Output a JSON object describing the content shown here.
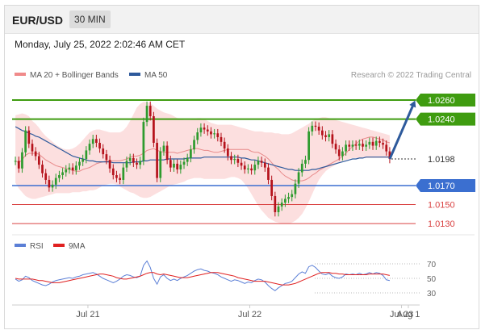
{
  "header": {
    "symbol": "EUR/USD",
    "timeframe": "30 MIN"
  },
  "datetime": "Monday, July 25, 2022 2:02:46 AM CET",
  "legend": {
    "ma20": {
      "label": "MA 20 + Bollinger Bands",
      "color": "#f08a8a"
    },
    "ma50": {
      "label": "MA 50",
      "color": "#2e5a9c"
    },
    "rsi": {
      "label": "RSI",
      "color": "#5b7fd6"
    },
    "rsi_ma": {
      "label": "9MA",
      "color": "#e02020"
    }
  },
  "source": "Research © 2022 Trading Central",
  "colors": {
    "bull": "#2e9b2e",
    "bear": "#b5121b",
    "band": "#fbd4d4",
    "resistance": "#3f9c10",
    "support_main": "#3b6fd0",
    "support": "#d94040",
    "target": "#2e5a9c"
  },
  "chart_data": [
    {
      "type": "candlestick",
      "ylim": [
        1.0125,
        1.0277
      ],
      "levels": [
        {
          "value": 1.026,
          "label": "1.0260",
          "kind": "resistance"
        },
        {
          "value": 1.024,
          "label": "1.0240",
          "kind": "resistance"
        },
        {
          "value": 1.0198,
          "label": "1.0198",
          "kind": "current"
        },
        {
          "value": 1.017,
          "label": "1.0170",
          "kind": "pivot"
        },
        {
          "value": 1.015,
          "label": "1.0150",
          "kind": "support"
        },
        {
          "value": 1.013,
          "label": "1.0130",
          "kind": "support"
        }
      ],
      "x_labels": [
        "Jul 21",
        "Jul 22",
        "Jul 23",
        "Aug 1"
      ],
      "closes": [
        1.0196,
        1.0188,
        1.0205,
        1.0228,
        1.0214,
        1.0206,
        1.0201,
        1.0192,
        1.0183,
        1.0176,
        1.0168,
        1.0171,
        1.0178,
        1.0181,
        1.0184,
        1.0187,
        1.0189,
        1.0186,
        1.0191,
        1.0195,
        1.0198,
        1.0207,
        1.0214,
        1.0219,
        1.0215,
        1.0209,
        1.0203,
        1.0197,
        1.0188,
        1.0181,
        1.0178,
        1.0176,
        1.0189,
        1.0196,
        1.0199,
        1.0194,
        1.0192,
        1.0196,
        1.0237,
        1.0254,
        1.0243,
        1.0215,
        1.0178,
        1.0206,
        1.0212,
        1.0197,
        1.0189,
        1.0193,
        1.0187,
        1.0192,
        1.0195,
        1.0199,
        1.0208,
        1.0218,
        1.0226,
        1.0231,
        1.0229,
        1.0227,
        1.0224,
        1.0225,
        1.0221,
        1.0216,
        1.0209,
        1.0201,
        1.0197,
        1.0198,
        1.0194,
        1.0191,
        1.0187,
        1.0188,
        1.0186,
        1.0192,
        1.0196,
        1.0194,
        1.0189,
        1.0176,
        1.0159,
        1.0142,
        1.0148,
        1.0152,
        1.0156,
        1.0158,
        1.0161,
        1.0172,
        1.0184,
        1.0193,
        1.0197,
        1.0227,
        1.0233,
        1.0232,
        1.0228,
        1.0223,
        1.0221,
        1.0224,
        1.0214,
        1.0208,
        1.0201,
        1.0206,
        1.0213,
        1.0211,
        1.0213,
        1.0212,
        1.0214,
        1.0211,
        1.0213,
        1.0216,
        1.0212,
        1.0217,
        1.0215,
        1.0213,
        1.0206,
        1.0198
      ],
      "ma20": [
        1.0196,
        1.0194,
        1.0197,
        1.0202,
        1.0204,
        1.0204,
        1.0204,
        1.0203,
        1.02,
        1.0197,
        1.0195,
        1.0193,
        1.0191,
        1.019,
        1.0189,
        1.0188,
        1.0187,
        1.0186,
        1.0185,
        1.0185,
        1.0187,
        1.0188,
        1.0189,
        1.0191,
        1.0193,
        1.0194,
        1.0195,
        1.0196,
        1.0196,
        1.0196,
        1.0196,
        1.0196,
        1.0197,
        1.0198,
        1.02,
        1.0201,
        1.0201,
        1.0202,
        1.0204,
        1.0207,
        1.0208,
        1.0209,
        1.0207,
        1.0206,
        1.0205,
        1.0205,
        1.0205,
        1.0205,
        1.0204,
        1.0205,
        1.0206,
        1.0207,
        1.0208,
        1.0209,
        1.0209,
        1.0208,
        1.0207,
        1.0207,
        1.0206,
        1.0205,
        1.0205,
        1.0206,
        1.0207,
        1.0208,
        1.0208,
        1.0208,
        1.0208,
        1.0208,
        1.0208,
        1.0208,
        1.0206,
        1.0205,
        1.0205,
        1.0203,
        1.0201,
        1.0198,
        1.0194,
        1.019,
        1.0187,
        1.0183,
        1.018,
        1.0178,
        1.0176,
        1.0175,
        1.0175,
        1.0175,
        1.0176,
        1.0178,
        1.0181,
        1.0183,
        1.0186,
        1.0188,
        1.019,
        1.0192,
        1.0194,
        1.0196,
        1.0198,
        1.0201,
        1.0204,
        1.0208,
        1.0211,
        1.0214,
        1.0217,
        1.0219,
        1.022,
        1.0221,
        1.0221,
        1.022,
        1.0219,
        1.0218,
        1.0216,
        1.0215
      ],
      "bb_upper": [
        1.0244,
        1.0245,
        1.0246,
        1.0245,
        1.0243,
        1.0238,
        1.0235,
        1.0231,
        1.0226,
        1.0222,
        1.0219,
        1.0216,
        1.0213,
        1.0211,
        1.0209,
        1.0208,
        1.0208,
        1.0209,
        1.0211,
        1.0214,
        1.0218,
        1.0222,
        1.0226,
        1.0228,
        1.0229,
        1.0229,
        1.0228,
        1.0227,
        1.0226,
        1.0226,
        1.0226,
        1.0226,
        1.0228,
        1.0232,
        1.0238,
        1.0245,
        1.0252,
        1.0256,
        1.0258,
        1.0258,
        1.0257,
        1.0254,
        1.0251,
        1.0249,
        1.0247,
        1.0246,
        1.0245,
        1.0243,
        1.0241,
        1.024,
        1.0239,
        1.0239,
        1.0239,
        1.024,
        1.0241,
        1.0241,
        1.024,
        1.0238,
        1.0236,
        1.0235,
        1.0234,
        1.0234,
        1.0234,
        1.0234,
        1.0234,
        1.0233,
        1.0232,
        1.0231,
        1.023,
        1.0229,
        1.0228,
        1.0227,
        1.0227,
        1.0227,
        1.0226,
        1.0226,
        1.0226,
        1.0225,
        1.0225,
        1.0224,
        1.0224,
        1.0224,
        1.0225,
        1.0227,
        1.0229,
        1.0231,
        1.0233,
        1.0235,
        1.0238,
        1.024,
        1.0241,
        1.0242,
        1.0242,
        1.0241,
        1.024,
        1.0239,
        1.0238,
        1.0237,
        1.0236,
        1.0235,
        1.0234,
        1.0233,
        1.0232,
        1.0231,
        1.023,
        1.0229,
        1.0228,
        1.0227,
        1.0226,
        1.0225,
        1.0224,
        1.0223
      ],
      "bb_lower": [
        1.0173,
        1.0167,
        1.0163,
        1.0159,
        1.0157,
        1.0156,
        1.0156,
        1.0157,
        1.0158,
        1.0159,
        1.016,
        1.0161,
        1.0162,
        1.0162,
        1.0162,
        1.0162,
        1.0162,
        1.0163,
        1.0163,
        1.0163,
        1.0164,
        1.0164,
        1.0165,
        1.0165,
        1.0166,
        1.0168,
        1.017,
        1.0171,
        1.0172,
        1.0172,
        1.0171,
        1.0169,
        1.0167,
        1.0165,
        1.0163,
        1.0162,
        1.016,
        1.0158,
        1.0157,
        1.0157,
        1.0158,
        1.016,
        1.0162,
        1.0164,
        1.0166,
        1.0168,
        1.017,
        1.0171,
        1.0172,
        1.0173,
        1.0174,
        1.0176,
        1.0177,
        1.0178,
        1.0178,
        1.0178,
        1.0177,
        1.0177,
        1.0177,
        1.0177,
        1.0177,
        1.0177,
        1.0177,
        1.0178,
        1.0179,
        1.0179,
        1.0178,
        1.0176,
        1.0172,
        1.0167,
        1.0161,
        1.0155,
        1.0149,
        1.0144,
        1.014,
        1.0136,
        1.0134,
        1.0132,
        1.0131,
        1.013,
        1.013,
        1.013,
        1.0131,
        1.0133,
        1.0136,
        1.014,
        1.0146,
        1.0153,
        1.0161,
        1.0169,
        1.0176,
        1.0181,
        1.0185,
        1.0188,
        1.019,
        1.0192,
        1.0194,
        1.0196,
        1.0197,
        1.0198,
        1.0199,
        1.0199,
        1.0199,
        1.0199,
        1.0199,
        1.0199,
        1.0199,
        1.0199,
        1.0199,
        1.0199,
        1.0199,
        1.0199
      ],
      "ma50": [
        1.0232,
        1.023,
        1.0228,
        1.0227,
        1.0225,
        1.0224,
        1.0222,
        1.0221,
        1.0219,
        1.0217,
        1.0215,
        1.0213,
        1.0211,
        1.0209,
        1.0207,
        1.0205,
        1.0203,
        1.0201,
        1.02,
        1.0199,
        1.0198,
        1.0197,
        1.0196,
        1.0196,
        1.0195,
        1.0195,
        1.0195,
        1.0195,
        1.0195,
        1.0194,
        1.0194,
        1.0194,
        1.0194,
        1.0194,
        1.0194,
        1.0195,
        1.0195,
        1.0195,
        1.0196,
        1.0196,
        1.0197,
        1.0197,
        1.0197,
        1.0197,
        1.0197,
        1.0198,
        1.0198,
        1.0198,
        1.0198,
        1.0198,
        1.0198,
        1.0199,
        1.0199,
        1.0199,
        1.0199,
        1.0199,
        1.02,
        1.02,
        1.02,
        1.02,
        1.02,
        1.02,
        1.02,
        1.02,
        1.02,
        1.02,
        1.02,
        1.0199,
        1.0199,
        1.0198,
        1.0197,
        1.0197,
        1.0196,
        1.0195,
        1.0194,
        1.0193,
        1.0192,
        1.0191,
        1.019,
        1.0189,
        1.0188,
        1.0187,
        1.0187,
        1.0186,
        1.0186,
        1.0186,
        1.0186,
        1.0186,
        1.0187,
        1.0187,
        1.0188,
        1.0189,
        1.019,
        1.0191,
        1.0192,
        1.0193,
        1.0194,
        1.0195,
        1.0196,
        1.0197,
        1.0198,
        1.0198,
        1.0199,
        1.0199,
        1.02,
        1.02,
        1.02,
        1.02,
        1.02,
        1.02,
        1.02,
        1.02
      ],
      "forecast": {
        "from": 1.0198,
        "to": 1.026
      }
    },
    {
      "type": "line",
      "ylim": [
        20,
        80
      ],
      "y_ticks": [
        70,
        50,
        30
      ],
      "series": [
        {
          "name": "RSI",
          "values": [
            49,
            46,
            48,
            53,
            51,
            47,
            45,
            43,
            41,
            40,
            42,
            45,
            47,
            48,
            49,
            50,
            51,
            50,
            52,
            53,
            55,
            56,
            57,
            58,
            56,
            53,
            50,
            48,
            46,
            44,
            46,
            49,
            53,
            55,
            54,
            52,
            51,
            53,
            68,
            74,
            65,
            50,
            42,
            52,
            55,
            50,
            47,
            49,
            47,
            50,
            52,
            54,
            57,
            60,
            62,
            63,
            61,
            60,
            58,
            57,
            55,
            52,
            50,
            48,
            46,
            48,
            47,
            45,
            43,
            45,
            44,
            47,
            49,
            48,
            45,
            40,
            36,
            33,
            37,
            40,
            43,
            44,
            46,
            51,
            56,
            59,
            57,
            66,
            68,
            65,
            60,
            56,
            55,
            57,
            53,
            51,
            50,
            52,
            56,
            55,
            56,
            55,
            57,
            55,
            56,
            58,
            56,
            58,
            57,
            54,
            48,
            47
          ]
        },
        {
          "name": "9MA",
          "values": [
            50,
            49,
            49,
            49,
            49,
            49,
            48,
            47,
            47,
            46,
            45,
            44,
            44,
            44,
            45,
            46,
            47,
            48,
            49,
            50,
            51,
            52,
            53,
            54,
            55,
            56,
            56,
            55,
            54,
            53,
            51,
            50,
            49,
            49,
            50,
            51,
            52,
            53,
            55,
            57,
            58,
            58,
            56,
            55,
            56,
            55,
            54,
            53,
            52,
            51,
            51,
            51,
            52,
            53,
            54,
            55,
            56,
            57,
            58,
            58,
            58,
            57,
            56,
            55,
            54,
            53,
            51,
            50,
            49,
            48,
            47,
            46,
            46,
            46,
            46,
            45,
            44,
            43,
            42,
            41,
            41,
            41,
            42,
            43,
            45,
            47,
            49,
            51,
            53,
            55,
            57,
            58,
            58,
            58,
            57,
            57,
            56,
            56,
            55,
            55,
            55,
            55,
            55,
            55,
            55,
            56,
            56,
            56,
            56,
            56,
            55,
            54
          ]
        }
      ]
    }
  ]
}
